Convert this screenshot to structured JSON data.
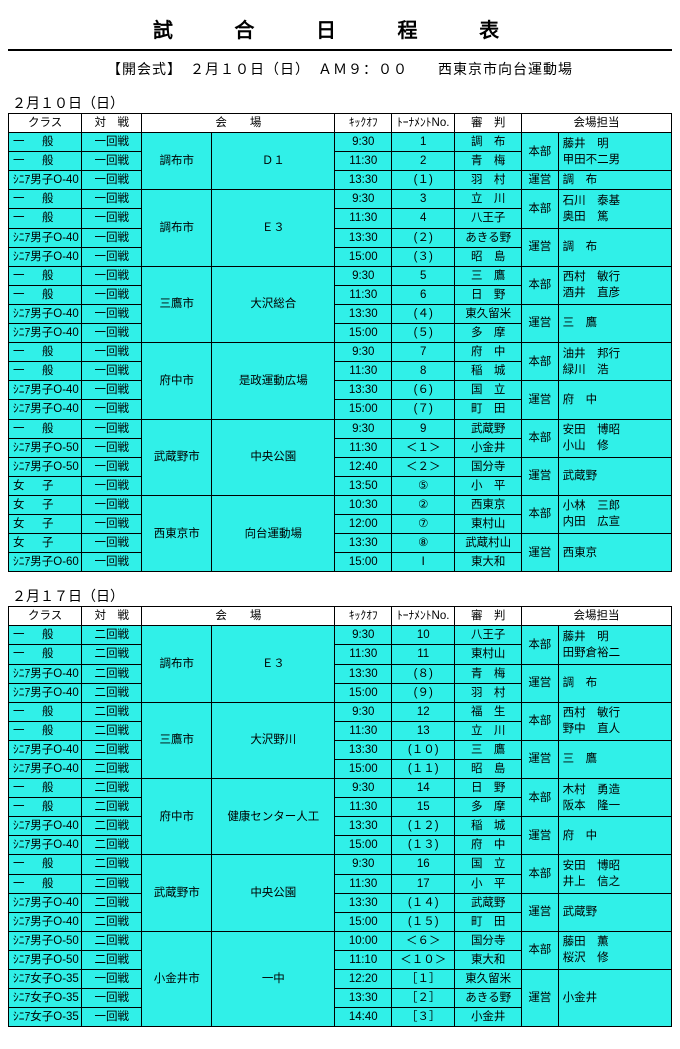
{
  "title": "試 合 日 程 表",
  "subtitle": "【開会式】　２月１０日（日）　ＡＭ９：００　　西東京市向台運動場",
  "headers": {
    "class": "クラス",
    "match": "対　戦",
    "venue": "会　　場",
    "kick": "ｷｯｸｵﾌ",
    "no": "ﾄｰﾅﾒﾝﾄNo.",
    "ref": "審　判",
    "staff": "会場担当"
  },
  "days": [
    {
      "date": "２月１０日（日）",
      "blocks": [
        {
          "city": "調布市",
          "venue": "Ｄ１",
          "rows": [
            {
              "class": "一　般",
              "match": "一回戦",
              "kick": "9:30",
              "no": "1",
              "ref": "調　布"
            },
            {
              "class": "一　般",
              "match": "一回戦",
              "kick": "11:30",
              "no": "2",
              "ref": "青　梅"
            },
            {
              "class": "ｼﾆｱ男子O-40",
              "match": "一回戦",
              "kick": "13:30",
              "no": "(１)",
              "ref": "羽　村"
            }
          ],
          "staff1": [
            "本部",
            "藤井　明",
            "甲田不二男"
          ],
          "staff2": [
            "運営",
            "調　布"
          ]
        },
        {
          "city": "調布市",
          "venue": "Ｅ３",
          "rows": [
            {
              "class": "一　般",
              "match": "一回戦",
              "kick": "9:30",
              "no": "3",
              "ref": "立　川"
            },
            {
              "class": "一　般",
              "match": "一回戦",
              "kick": "11:30",
              "no": "4",
              "ref": "八王子"
            },
            {
              "class": "ｼﾆｱ男子O-40",
              "match": "一回戦",
              "kick": "13:30",
              "no": "(２)",
              "ref": "あきる野"
            },
            {
              "class": "ｼﾆｱ男子O-40",
              "match": "一回戦",
              "kick": "15:00",
              "no": "(３)",
              "ref": "昭　島"
            }
          ],
          "staff1": [
            "本部",
            "石川　泰基",
            "奥田　篤"
          ],
          "staff2": [
            "運営",
            "調　布"
          ]
        },
        {
          "city": "三鷹市",
          "venue": "大沢総合",
          "rows": [
            {
              "class": "一　般",
              "match": "一回戦",
              "kick": "9:30",
              "no": "5",
              "ref": "三　鷹"
            },
            {
              "class": "一　般",
              "match": "一回戦",
              "kick": "11:30",
              "no": "6",
              "ref": "日　野"
            },
            {
              "class": "ｼﾆｱ男子O-40",
              "match": "一回戦",
              "kick": "13:30",
              "no": "(４)",
              "ref": "東久留米"
            },
            {
              "class": "ｼﾆｱ男子O-40",
              "match": "一回戦",
              "kick": "15:00",
              "no": "(５)",
              "ref": "多　摩"
            }
          ],
          "staff1": [
            "本部",
            "西村　敏行",
            "酒井　直彦"
          ],
          "staff2": [
            "運営",
            "三　鷹"
          ]
        },
        {
          "city": "府中市",
          "venue": "是政運動広場",
          "rows": [
            {
              "class": "一　般",
              "match": "一回戦",
              "kick": "9:30",
              "no": "7",
              "ref": "府　中"
            },
            {
              "class": "一　般",
              "match": "一回戦",
              "kick": "11:30",
              "no": "8",
              "ref": "稲　城"
            },
            {
              "class": "ｼﾆｱ男子O-40",
              "match": "一回戦",
              "kick": "13:30",
              "no": "(６)",
              "ref": "国　立"
            },
            {
              "class": "ｼﾆｱ男子O-40",
              "match": "一回戦",
              "kick": "15:00",
              "no": "(７)",
              "ref": "町　田"
            }
          ],
          "staff1": [
            "本部",
            "油井　邦行",
            "緑川　浩"
          ],
          "staff2": [
            "運営",
            "府　中"
          ]
        },
        {
          "city": "武蔵野市",
          "venue": "中央公園",
          "rows": [
            {
              "class": "一　般",
              "match": "一回戦",
              "kick": "9:30",
              "no": "9",
              "ref": "武蔵野"
            },
            {
              "class": "ｼﾆｱ男子O-50",
              "match": "一回戦",
              "kick": "11:30",
              "no": "＜１＞",
              "ref": "小金井"
            },
            {
              "class": "ｼﾆｱ男子O-50",
              "match": "一回戦",
              "kick": "12:40",
              "no": "＜２＞",
              "ref": "国分寺"
            },
            {
              "class": "女　子",
              "match": "一回戦",
              "kick": "13:50",
              "no": "⑤",
              "ref": "小　平"
            }
          ],
          "staff1": [
            "本部",
            "安田　博昭",
            "小山　修"
          ],
          "staff2": [
            "運営",
            "武蔵野"
          ]
        },
        {
          "city": "西東京市",
          "venue": "向台運動場",
          "rows": [
            {
              "class": "女　子",
              "match": "一回戦",
              "kick": "10:30",
              "no": "②",
              "ref": "西東京"
            },
            {
              "class": "女　子",
              "match": "一回戦",
              "kick": "12:00",
              "no": "⑦",
              "ref": "東村山"
            },
            {
              "class": "女　子",
              "match": "一回戦",
              "kick": "13:30",
              "no": "⑧",
              "ref": "武蔵村山"
            },
            {
              "class": "ｼﾆｱ男子O-60",
              "match": "一回戦",
              "kick": "15:00",
              "no": "Ⅰ",
              "ref": "東大和"
            }
          ],
          "staff1": [
            "本部",
            "小林　三郎",
            "内田　広宣"
          ],
          "staff2": [
            "運営",
            "西東京"
          ]
        }
      ]
    },
    {
      "date": "２月１７日（日）",
      "blocks": [
        {
          "city": "調布市",
          "venue": "Ｅ３",
          "rows": [
            {
              "class": "一　般",
              "match": "二回戦",
              "kick": "9:30",
              "no": "10",
              "ref": "八王子"
            },
            {
              "class": "一　般",
              "match": "二回戦",
              "kick": "11:30",
              "no": "11",
              "ref": "東村山"
            },
            {
              "class": "ｼﾆｱ男子O-40",
              "match": "二回戦",
              "kick": "13:30",
              "no": "(８)",
              "ref": "青　梅"
            },
            {
              "class": "ｼﾆｱ男子O-40",
              "match": "二回戦",
              "kick": "15:00",
              "no": "(９)",
              "ref": "羽　村"
            }
          ],
          "staff1": [
            "本部",
            "藤井　明",
            "田野倉裕二"
          ],
          "staff2": [
            "運営",
            "調　布"
          ]
        },
        {
          "city": "三鷹市",
          "venue": "大沢野川",
          "rows": [
            {
              "class": "一　般",
              "match": "二回戦",
              "kick": "9:30",
              "no": "12",
              "ref": "福　生"
            },
            {
              "class": "一　般",
              "match": "二回戦",
              "kick": "11:30",
              "no": "13",
              "ref": "立　川"
            },
            {
              "class": "ｼﾆｱ男子O-40",
              "match": "二回戦",
              "kick": "13:30",
              "no": "(１０)",
              "ref": "三　鷹"
            },
            {
              "class": "ｼﾆｱ男子O-40",
              "match": "二回戦",
              "kick": "15:00",
              "no": "(１１)",
              "ref": "昭　島"
            }
          ],
          "staff1": [
            "本部",
            "西村　敏行",
            "野中　直人"
          ],
          "staff2": [
            "運営",
            "三　鷹"
          ]
        },
        {
          "city": "府中市",
          "venue": "健康センター人工",
          "rows": [
            {
              "class": "一　般",
              "match": "二回戦",
              "kick": "9:30",
              "no": "14",
              "ref": "日　野"
            },
            {
              "class": "一　般",
              "match": "二回戦",
              "kick": "11:30",
              "no": "15",
              "ref": "多　摩"
            },
            {
              "class": "ｼﾆｱ男子O-40",
              "match": "二回戦",
              "kick": "13:30",
              "no": "(１２)",
              "ref": "稲　城"
            },
            {
              "class": "ｼﾆｱ男子O-40",
              "match": "二回戦",
              "kick": "15:00",
              "no": "(１３)",
              "ref": "府　中"
            }
          ],
          "staff1": [
            "本部",
            "木村　勇造",
            "阪本　隆一"
          ],
          "staff2": [
            "運営",
            "府　中"
          ]
        },
        {
          "city": "武蔵野市",
          "venue": "中央公園",
          "rows": [
            {
              "class": "一　般",
              "match": "二回戦",
              "kick": "9:30",
              "no": "16",
              "ref": "国　立"
            },
            {
              "class": "一　般",
              "match": "二回戦",
              "kick": "11:30",
              "no": "17",
              "ref": "小　平"
            },
            {
              "class": "ｼﾆｱ男子O-40",
              "match": "二回戦",
              "kick": "13:30",
              "no": "(１４)",
              "ref": "武蔵野"
            },
            {
              "class": "ｼﾆｱ男子O-40",
              "match": "二回戦",
              "kick": "15:00",
              "no": "(１５)",
              "ref": "町　田"
            }
          ],
          "staff1": [
            "本部",
            "安田　博昭",
            "井上　信之"
          ],
          "staff2": [
            "運営",
            "武蔵野"
          ]
        },
        {
          "city": "小金井市",
          "venue": "一中",
          "rows": [
            {
              "class": "ｼﾆｱ男子O-50",
              "match": "二回戦",
              "kick": "10:00",
              "no": "＜６＞",
              "ref": "国分寺"
            },
            {
              "class": "ｼﾆｱ男子O-50",
              "match": "二回戦",
              "kick": "11:10",
              "no": "＜１０＞",
              "ref": "東大和"
            },
            {
              "class": "ｼﾆｱ女子O-35",
              "match": "一回戦",
              "kick": "12:20",
              "no": "［１］",
              "ref": "東久留米"
            },
            {
              "class": "ｼﾆｱ女子O-35",
              "match": "一回戦",
              "kick": "13:30",
              "no": "［２］",
              "ref": "あきる野"
            },
            {
              "class": "ｼﾆｱ女子O-35",
              "match": "一回戦",
              "kick": "14:40",
              "no": "［３］",
              "ref": "小金井"
            }
          ],
          "staff1": [
            "本部",
            "藤田　薫",
            "桜沢　修"
          ],
          "staff2": [
            "運営",
            "小金井"
          ],
          "staff1span": 2,
          "staff2span": 3
        }
      ]
    }
  ]
}
